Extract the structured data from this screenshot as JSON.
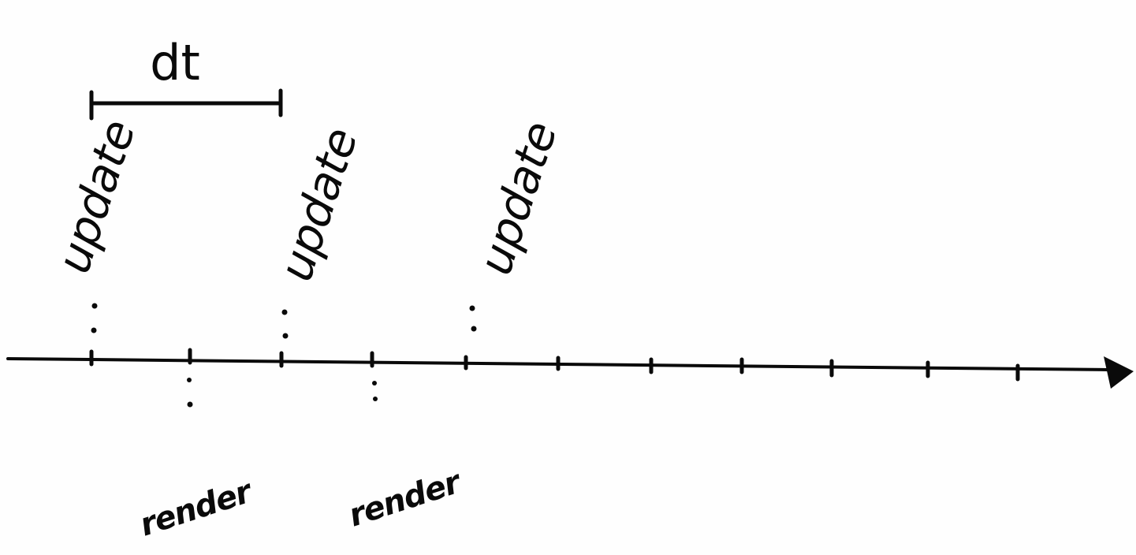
{
  "diagram": {
    "interval_label": "dt",
    "update_label": "update",
    "render_label": "render",
    "tick_count": 11,
    "update_tick_indices": [
      0,
      2,
      4
    ],
    "render_tick_indices": [
      1,
      3
    ],
    "stroke_color": "#0a0a0a",
    "background_color": "#fefefe"
  }
}
